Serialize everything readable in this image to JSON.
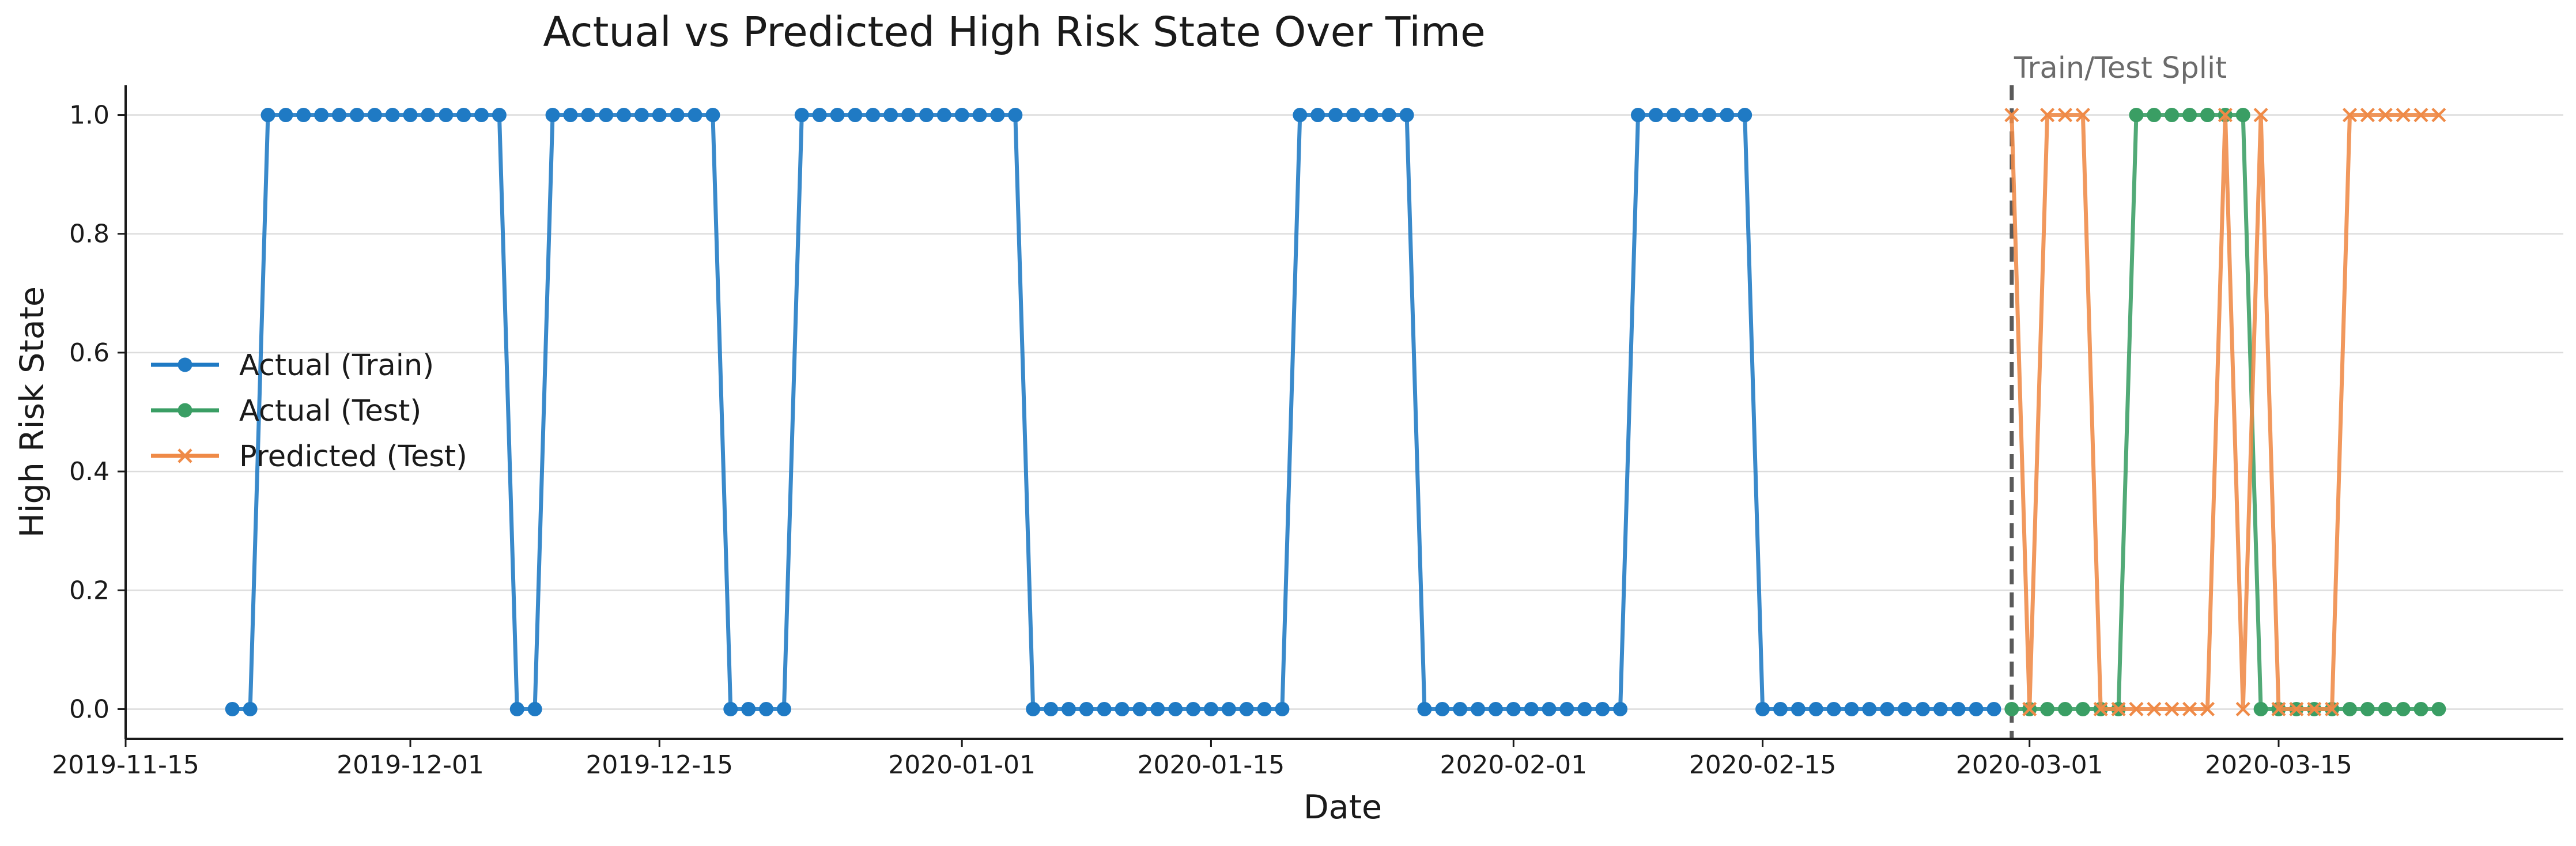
{
  "chart_data": {
    "type": "line",
    "title": "Actual vs Predicted High Risk State Over Time",
    "xlabel": "Date",
    "ylabel": "High Risk State",
    "x_ticks": [
      "2019-11-15",
      "2019-12-01",
      "2019-12-15",
      "2020-01-01",
      "2020-01-15",
      "2020-02-01",
      "2020-02-15",
      "2020-03-01",
      "2020-03-15"
    ],
    "y_ticks": [
      "0.0",
      "0.2",
      "0.4",
      "0.6",
      "0.8",
      "1.0"
    ],
    "xlim": [
      "2019-11-15",
      "2020-03-31"
    ],
    "ylim": [
      -0.05,
      1.05
    ],
    "grid": "horizontal",
    "legend_position": "center-left",
    "split": {
      "label": "Train/Test Split",
      "date": "2020-02-29"
    },
    "series": [
      {
        "name": "Actual (Train)",
        "color": "#1f7ac4",
        "marker": "circle",
        "start_date": "2019-11-21",
        "values": [
          0,
          0,
          1,
          1,
          1,
          1,
          1,
          1,
          1,
          1,
          1,
          1,
          1,
          1,
          1,
          1,
          0,
          0,
          1,
          1,
          1,
          1,
          1,
          1,
          1,
          1,
          1,
          1,
          0,
          0,
          0,
          0,
          1,
          1,
          1,
          1,
          1,
          1,
          1,
          1,
          1,
          1,
          1,
          1,
          1,
          0,
          0,
          0,
          0,
          0,
          0,
          0,
          0,
          0,
          0,
          0,
          0,
          0,
          0,
          0,
          1,
          1,
          1,
          1,
          1,
          1,
          1,
          0,
          0,
          0,
          0,
          0,
          0,
          0,
          0,
          0,
          0,
          0,
          0,
          1,
          1,
          1,
          1,
          1,
          1,
          1,
          0,
          0,
          0,
          0,
          0,
          0,
          0,
          0,
          0,
          0,
          0,
          0,
          0,
          0
        ]
      },
      {
        "name": "Actual (Test)",
        "color": "#3a9e64",
        "marker": "circle",
        "start_date": "2020-02-29",
        "values": [
          0,
          0,
          0,
          0,
          0,
          0,
          0,
          1,
          1,
          1,
          1,
          1,
          1,
          1,
          0,
          0,
          0,
          0,
          0,
          0,
          0,
          0,
          0,
          0,
          0
        ]
      },
      {
        "name": "Predicted (Test)",
        "color": "#ef8a47",
        "marker": "x",
        "start_date": "2020-02-29",
        "values": [
          1,
          0,
          1,
          1,
          1,
          0,
          0,
          0,
          0,
          0,
          0,
          0,
          1,
          0,
          1,
          0,
          0,
          0,
          0,
          1,
          1,
          1,
          1,
          1,
          1
        ]
      }
    ]
  }
}
